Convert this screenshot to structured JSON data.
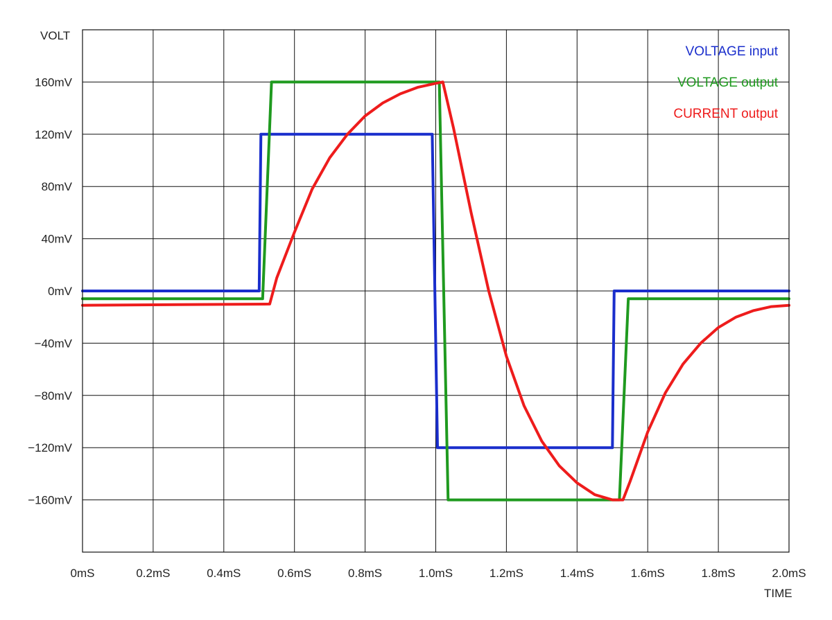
{
  "chart_data": {
    "type": "line",
    "ylabel": "VOLT",
    "xlabel": "TIME",
    "x_unit": "mS",
    "y_unit": "mV",
    "xlim": [
      0,
      2.0
    ],
    "ylim": [
      -200,
      200
    ],
    "grid": true,
    "legend_position": "top-right",
    "x_ticks": [
      {
        "value": 0.0,
        "label": "0mS"
      },
      {
        "value": 0.2,
        "label": "0.2mS"
      },
      {
        "value": 0.4,
        "label": "0.4mS"
      },
      {
        "value": 0.6,
        "label": "0.6mS"
      },
      {
        "value": 0.8,
        "label": "0.8mS"
      },
      {
        "value": 1.0,
        "label": "1.0mS"
      },
      {
        "value": 1.2,
        "label": "1.2mS"
      },
      {
        "value": 1.4,
        "label": "1.4mS"
      },
      {
        "value": 1.6,
        "label": "1.6mS"
      },
      {
        "value": 1.8,
        "label": "1.8mS"
      },
      {
        "value": 2.0,
        "label": "2.0mS"
      }
    ],
    "y_ticks": [
      {
        "value": 160,
        "label": "160mV"
      },
      {
        "value": 120,
        "label": "120mV"
      },
      {
        "value": 80,
        "label": "80mV"
      },
      {
        "value": 40,
        "label": "40mV"
      },
      {
        "value": 0,
        "label": "0mV"
      },
      {
        "value": -40,
        "label": "−40mV"
      },
      {
        "value": -80,
        "label": "−80mV"
      },
      {
        "value": -120,
        "label": "−120mV"
      },
      {
        "value": -160,
        "label": "−160mV"
      }
    ],
    "series": [
      {
        "name": "VOLTAGE input",
        "color": "#1a2ecc",
        "x": [
          0,
          0.5,
          0.505,
          0.99,
          1.005,
          1.5,
          1.505,
          2.0
        ],
        "y": [
          0,
          0,
          120,
          120,
          -120,
          -120,
          0,
          0
        ]
      },
      {
        "name": "VOLTAGE output",
        "color": "#1f9a1f",
        "x": [
          0,
          0.51,
          0.535,
          1.01,
          1.035,
          1.52,
          1.545,
          2.0
        ],
        "y": [
          -6,
          -6,
          160,
          160,
          -160,
          -160,
          -6,
          -6
        ]
      },
      {
        "name": "CURRENT output",
        "color": "#ee1c1c",
        "x": [
          0,
          0.53,
          0.55,
          0.6,
          0.65,
          0.7,
          0.75,
          0.8,
          0.85,
          0.9,
          0.95,
          1.0,
          1.02,
          1.05,
          1.1,
          1.15,
          1.2,
          1.25,
          1.3,
          1.35,
          1.4,
          1.45,
          1.5,
          1.53,
          1.55,
          1.6,
          1.65,
          1.7,
          1.75,
          1.8,
          1.85,
          1.9,
          1.95,
          2.0
        ],
        "y": [
          -11,
          -10,
          10,
          45,
          78,
          102,
          120,
          134,
          144,
          151,
          156,
          159,
          160,
          125,
          60,
          0,
          -50,
          -88,
          -115,
          -134,
          -147,
          -156,
          -160,
          -160,
          -146,
          -108,
          -78,
          -56,
          -40,
          -28,
          -20,
          -15,
          -12,
          -11
        ]
      }
    ]
  }
}
